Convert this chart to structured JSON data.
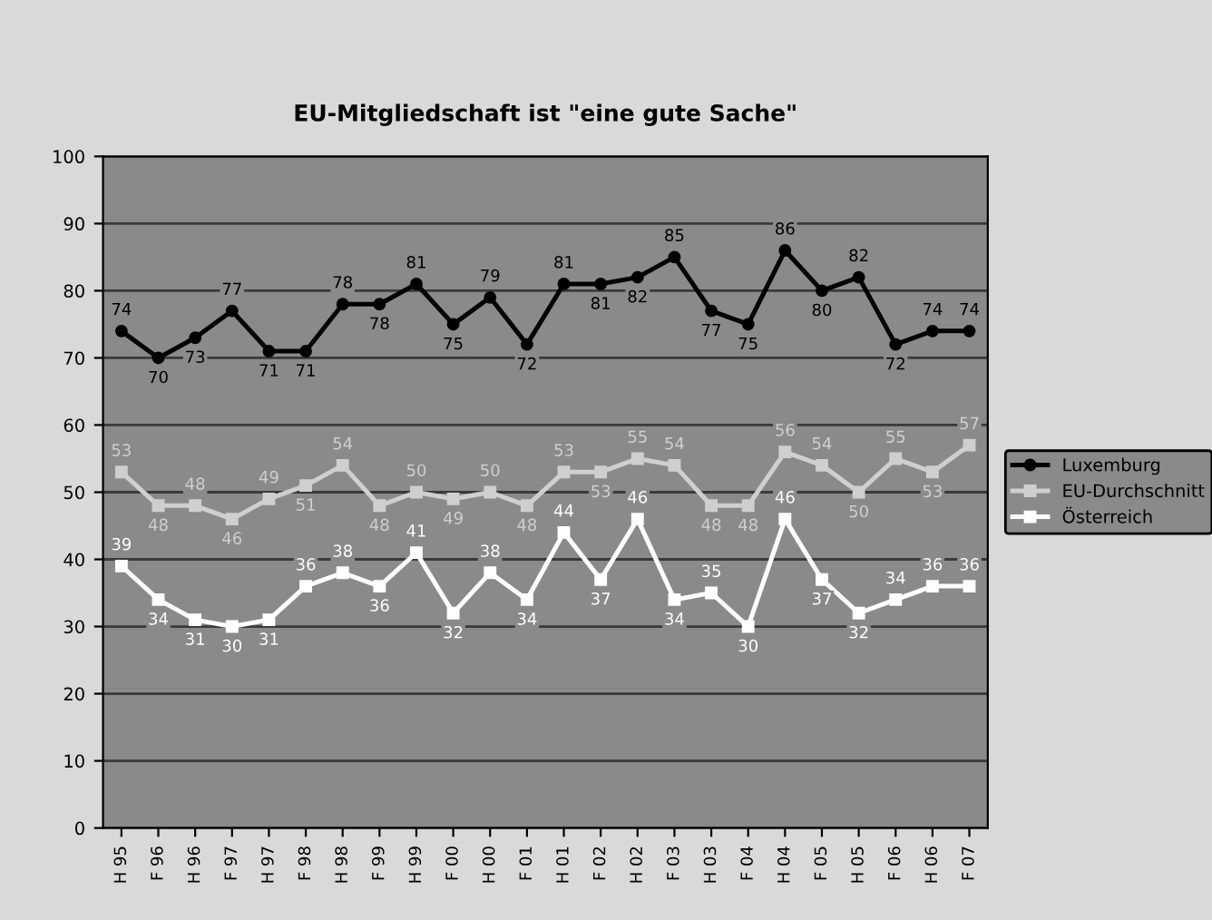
{
  "chart_data": {
    "type": "line",
    "title": "EU-Mitgliedschaft ist \"eine gute Sache\"",
    "categories": [
      "H 95",
      "F 96",
      "H 96",
      "F 97",
      "H 97",
      "F 98",
      "H 98",
      "F 99",
      "H 99",
      "F 00",
      "H 00",
      "F 01",
      "H 01",
      "F 02",
      "H 02",
      "F 03",
      "H 03",
      "F 04",
      "H 04",
      "F 05",
      "H 05",
      "F 06",
      "H 06",
      "F 07"
    ],
    "series": [
      {
        "name": "Luxemburg",
        "color": "#000000",
        "marker": "circle",
        "values": [
          74,
          70,
          73,
          77,
          71,
          71,
          78,
          78,
          81,
          75,
          79,
          72,
          81,
          81,
          82,
          85,
          77,
          75,
          86,
          80,
          82,
          72,
          74,
          74
        ]
      },
      {
        "name": "EU-Durchschnitt",
        "color": "#cfcfcf",
        "marker": "square",
        "values": [
          53,
          48,
          48,
          46,
          49,
          51,
          54,
          48,
          50,
          49,
          50,
          48,
          53,
          53,
          55,
          54,
          48,
          48,
          56,
          54,
          50,
          55,
          53,
          57
        ]
      },
      {
        "name": "Österreich",
        "color": "#ffffff",
        "marker": "square",
        "values": [
          39,
          34,
          31,
          30,
          31,
          36,
          38,
          36,
          41,
          32,
          38,
          34,
          44,
          37,
          46,
          34,
          35,
          30,
          46,
          37,
          32,
          34,
          36,
          36
        ]
      }
    ],
    "ylim": [
      0,
      100
    ],
    "yticks": [
      0,
      10,
      20,
      30,
      40,
      50,
      60,
      70,
      80,
      90,
      100
    ],
    "grid": "y",
    "legend": "right",
    "data_labels": true,
    "line_style": "solid"
  }
}
